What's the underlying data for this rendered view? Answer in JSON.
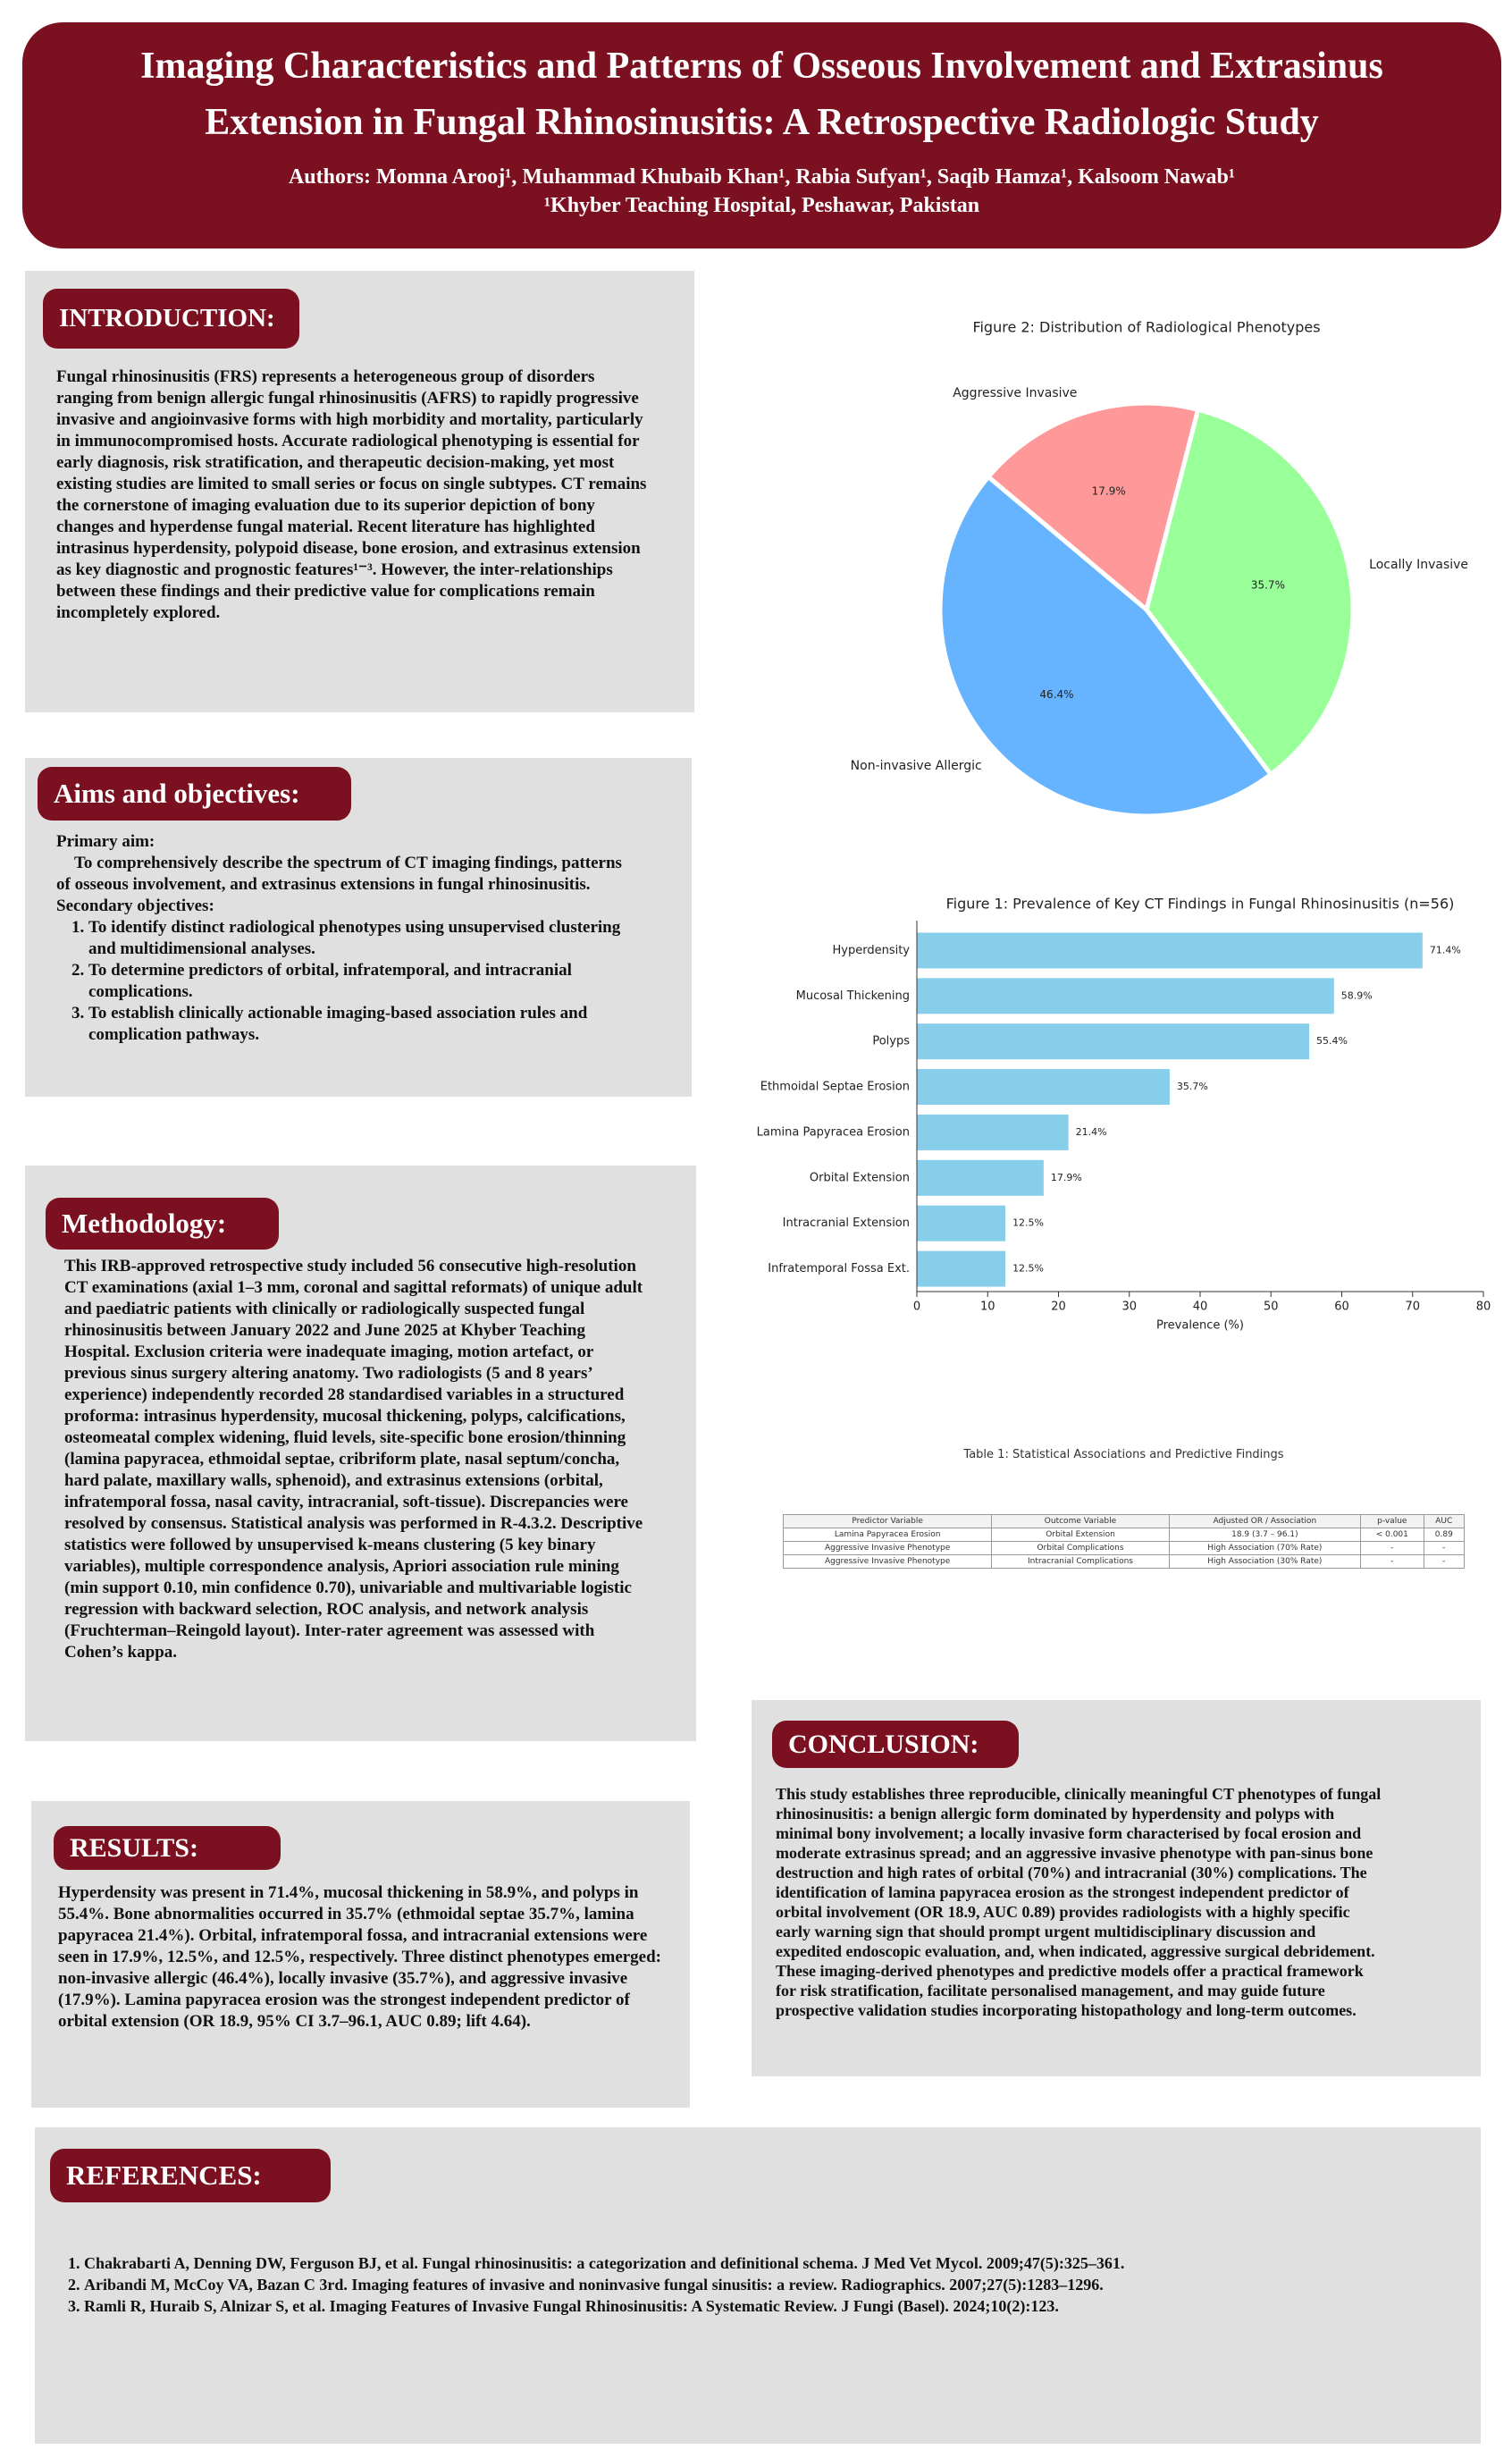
{
  "header": {
    "title": "Imaging Characteristics and Patterns of Osseous Involvement and Extrasinus Extension in Fungal Rhinosinusitis: A Retrospective Radiologic Study",
    "authors": "Authors:  Momna Arooj¹, Muhammad Khubaib Khan¹, Rabia Sufyan¹, Saqib Hamza¹, Kalsoom Nawab¹",
    "affiliation": "¹Khyber Teaching Hospital, Peshawar, Pakistan"
  },
  "introduction": {
    "heading": "INTRODUCTION:",
    "text": "Fungal rhinosinusitis (FRS) represents a heterogeneous group of disorders ranging from benign allergic fungal rhinosinusitis (AFRS) to rapidly progressive invasive and angioinvasive forms with high morbidity and mortality, particularly in immunocompromised hosts. Accurate radiological phenotyping is essential for early diagnosis, risk stratification, and therapeutic decision-making, yet most existing studies are limited to small series or focus on single subtypes. CT remains the cornerstone of imaging evaluation due to its superior depiction of bony changes and hyperdense fungal material. Recent literature has highlighted intrasinus hyperdensity, polypoid disease, bone erosion, and extrasinus extension as key diagnostic and prognostic features¹⁻³. However, the inter-relationships between these findings and their predictive value for complications remain incompletely explored."
  },
  "aims": {
    "heading": "Aims and objectives:",
    "primary_label": "Primary aim:",
    "primary_text": "To comprehensively describe the spectrum of CT imaging findings, patterns of osseous involvement, and extrasinus extensions in fungal rhinosinusitis.",
    "secondary_label": "Secondary objectives:",
    "objectives": [
      "To identify distinct radiological phenotypes using unsupervised clustering and multidimensional analyses.",
      "To determine predictors of orbital, infratemporal, and intracranial complications.",
      "To establish clinically actionable imaging-based association rules and complication pathways."
    ]
  },
  "methodology": {
    "heading": "Methodology:",
    "text": "This IRB-approved retrospective study included 56 consecutive high-resolution CT examinations (axial 1–3 mm, coronal and sagittal reformats) of unique adult and paediatric patients with clinically or radiologically suspected fungal rhinosinusitis between January 2022 and June 2025 at Khyber Teaching Hospital. Exclusion criteria were inadequate imaging, motion artefact, or previous sinus surgery altering anatomy. Two radiologists (5 and 8 years’ experience) independently recorded 28 standardised variables in a structured proforma: intrasinus hyperdensity, mucosal thickening, polyps, calcifications, osteomeatal complex widening, fluid levels, site-specific bone erosion/thinning (lamina papyracea, ethmoidal septae, cribriform plate, nasal septum/concha, hard palate, maxillary walls, sphenoid), and extrasinus extensions (orbital, infratemporal fossa, nasal cavity, intracranial, soft-tissue). Discrepancies were resolved by consensus. Statistical analysis was performed in R-4.3.2. Descriptive statistics were followed by unsupervised k-means clustering (5 key binary variables), multiple correspondence analysis, Apriori association rule mining (min support 0.10, min confidence 0.70), univariable and multivariable logistic regression with backward selection, ROC analysis, and network analysis (Fruchterman–Reingold layout). Inter-rater agreement was assessed with Cohen’s kappa."
  },
  "results": {
    "heading": "RESULTS:",
    "text": "Hyperdensity was present in 71.4%, mucosal thickening in 58.9%, and polyps in 55.4%. Bone abnormalities occurred in 35.7% (ethmoidal septae 35.7%, lamina papyracea 21.4%). Orbital, infratemporal fossa, and intracranial extensions were seen in 17.9%, 12.5%, and 12.5%, respectively. Three distinct phenotypes emerged: non-invasive allergic (46.4%), locally invasive (35.7%), and aggressive invasive (17.9%). Lamina papyracea erosion was the strongest independent predictor of orbital extension (OR 18.9, 95% CI 3.7–96.1, AUC 0.89; lift 4.64)."
  },
  "conclusion": {
    "heading": "CONCLUSION:",
    "text": "This study establishes three reproducible, clinically meaningful CT phenotypes of fungal rhinosinusitis: a benign allergic form dominated by hyperdensity and polyps with minimal bony involvement; a locally invasive form characterised by focal erosion and moderate extrasinus spread; and an aggressive invasive phenotype with pan-sinus bone destruction and high rates of orbital (70%) and intracranial (30%) complications. The identification of lamina papyracea erosion as the strongest independent predictor of orbital involvement (OR 18.9, AUC 0.89) provides radiologists with a highly specific early warning sign that should prompt urgent multidisciplinary discussion and expedited endoscopic evaluation, and, when indicated, aggressive surgical debridement. These imaging-derived phenotypes and predictive models offer a practical framework for risk stratification, facilitate personalised management, and may guide future prospective validation studies incorporating histopathology and long-term outcomes."
  },
  "references": {
    "heading": "REFERENCES:",
    "items": [
      "Chakrabarti A, Denning DW, Ferguson BJ, et al. Fungal rhinosinusitis: a categorization and definitional schema. J Med Vet Mycol. 2009;47(5):325–361.",
      "Aribandi M, McCoy VA, Bazan C 3rd. Imaging features of invasive and noninvasive fungal sinusitis: a review. Radiographics. 2007;27(5):1283–1296.",
      "Ramli R, Huraib S, Alnizar S, et al. Imaging Features of Invasive Fungal Rhinosinusitis: A Systematic Review. J Fungi (Basel). 2024;10(2):123."
    ]
  },
  "chart_data": [
    {
      "type": "pie",
      "title": "Figure 2: Distribution of Radiological Phenotypes",
      "categories": [
        "Non-invasive Allergic",
        "Locally Invasive",
        "Aggressive Invasive"
      ],
      "values": [
        46.4,
        35.7,
        17.9
      ],
      "value_labels": [
        "46.4%",
        "35.7%",
        "17.9%"
      ],
      "colors": [
        "#66b3ff",
        "#99ff99",
        "#ff9999"
      ]
    },
    {
      "type": "bar",
      "horizontal": true,
      "title": "Figure 1: Prevalence of Key CT Findings in Fungal Rhinosinusitis (n=56)",
      "categories": [
        "Hyperdensity",
        "Mucosal Thickening",
        "Polyps",
        "Ethmoidal Septae Erosion",
        "Lamina Papyracea Erosion",
        "Orbital Extension",
        "Intracranial Extension",
        "Infratemporal Fossa Ext."
      ],
      "values": [
        71.4,
        58.9,
        55.4,
        35.7,
        21.4,
        17.9,
        12.5,
        12.5
      ],
      "value_labels": [
        "71.4%",
        "58.9%",
        "55.4%",
        "35.7%",
        "21.4%",
        "17.9%",
        "12.5%",
        "12.5%"
      ],
      "color": "#87ceeb",
      "xlim": [
        0,
        80
      ],
      "xticks": [
        0,
        10,
        20,
        30,
        40,
        50,
        60,
        70,
        80
      ],
      "xlabel": "Prevalence (%)"
    }
  ],
  "table": {
    "title": "Table 1: Statistical Associations and Predictive Findings",
    "header": [
      "Predictor Variable",
      "Outcome Variable",
      "Adjusted OR / Association",
      "p-value",
      "AUC"
    ],
    "rows": [
      [
        "Lamina Papyracea Erosion",
        "Orbital Extension",
        "18.9 (3.7 – 96.1)",
        "< 0.001",
        "0.89"
      ],
      [
        "Aggressive Invasive Phenotype",
        "Orbital Complications",
        "High Association (70% Rate)",
        "-",
        "-"
      ],
      [
        "Aggressive Invasive Phenotype",
        "Intracranial Complications",
        "High Association (30% Rate)",
        "-",
        "-"
      ]
    ]
  }
}
